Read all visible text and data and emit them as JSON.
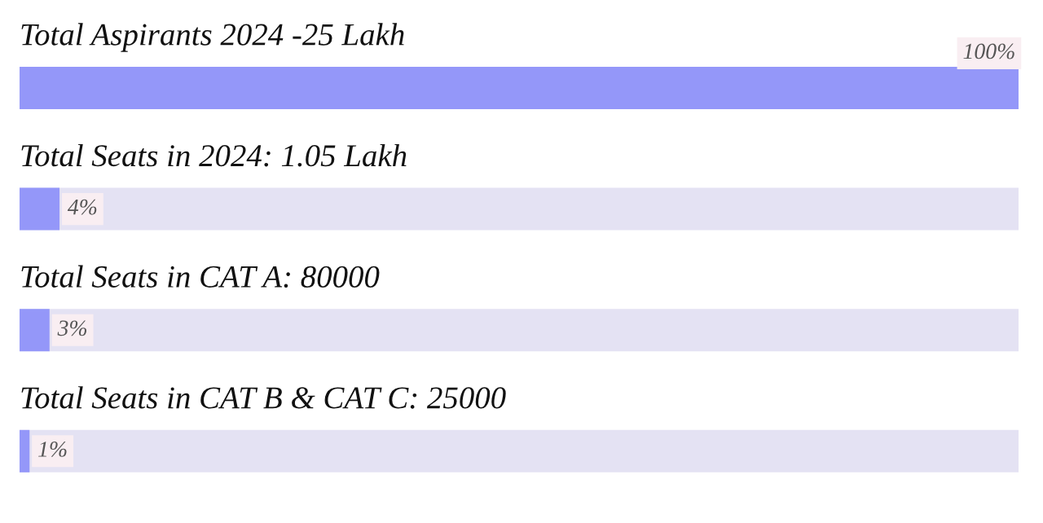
{
  "chart_data": {
    "type": "bar",
    "orientation": "horizontal",
    "categories": [
      "Total Aspirants 2024 -25 Lakh",
      "Total Seats in 2024: 1.05 Lakh",
      "Total Seats in CAT A: 80000",
      "Total Seats in CAT B & CAT C: 25000"
    ],
    "series": [
      {
        "color": "#9497f9",
        "values": [
          100,
          4,
          3,
          1
        ],
        "value_labels": [
          "100%",
          "4%",
          "3%",
          "1%"
        ]
      }
    ],
    "xlim": [
      0,
      100
    ]
  }
}
